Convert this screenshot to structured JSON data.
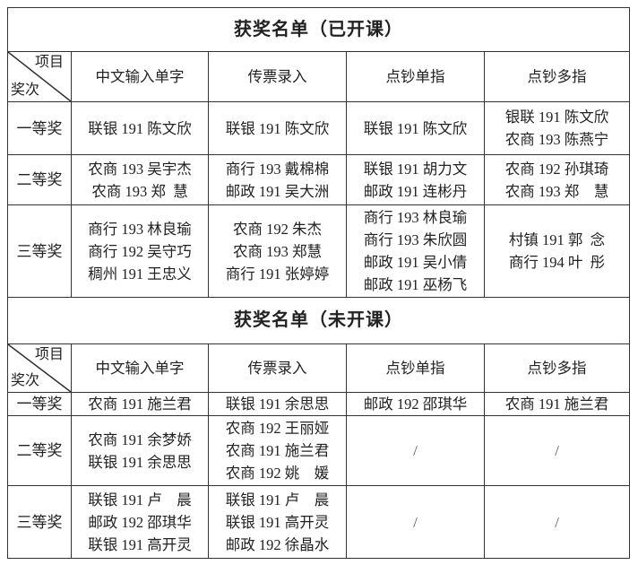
{
  "tables": [
    {
      "title": "获奖名单（已开课）",
      "corner_top": "项目",
      "corner_bottom": "奖次",
      "columns": [
        "中文输入单字",
        "传票录入",
        "点钞单指",
        "点钞多指"
      ],
      "rows": [
        {
          "label": "一等奖",
          "cells": [
            [
              "联银 191 陈文欣"
            ],
            [
              "联银 191 陈文欣"
            ],
            [
              "联银 191 陈文欣"
            ],
            [
              "银联 191 陈文欣",
              "农商 193 陈燕宁"
            ]
          ]
        },
        {
          "label": "二等奖",
          "cells": [
            [
              "农商 193 吴宇杰",
              "农商 193 郑  慧"
            ],
            [
              "商行 193 戴棉棉",
              "邮政 191 吴大洲"
            ],
            [
              "联银 191 胡力文",
              "邮政 191 连彬丹"
            ],
            [
              "农商 192 孙琪琦",
              "农商 193 郑    慧"
            ]
          ]
        },
        {
          "label": "三等奖",
          "cells": [
            [
              "商行 193 林良瑜",
              "商行 192 吴守巧",
              "稠州 191 王忠义"
            ],
            [
              "农商 192 朱杰",
              "农商 193 郑慧",
              "商行 191 张婷婷"
            ],
            [
              "商行 193 林良瑜",
              "商行 193 朱欣圆",
              "邮政 191 吴小倩",
              "邮政 191 巫杨飞"
            ],
            [
              "村镇 191 郭  念",
              "商行 194 叶  彤"
            ]
          ]
        }
      ]
    },
    {
      "title": "获奖名单（未开课）",
      "corner_top": "项目",
      "corner_bottom": "奖次",
      "columns": [
        "中文输入单字",
        "传票录入",
        "点钞单指",
        "点钞多指"
      ],
      "rows": [
        {
          "label": "一等奖",
          "cells": [
            [
              "农商 191 施兰君"
            ],
            [
              "联银 191 余思思"
            ],
            [
              "邮政 192 邵琪华"
            ],
            [
              "农商 191 施兰君"
            ]
          ]
        },
        {
          "label": "二等奖",
          "cells": [
            [
              "农商 191 余梦娇",
              "联银 191 余思思"
            ],
            [
              "农商 192 王丽娅",
              "农商 191 施兰君",
              "农商 192 姚    媛"
            ],
            [
              "/"
            ],
            [
              "/"
            ]
          ]
        },
        {
          "label": "三等奖",
          "cells": [
            [
              "联银 191 卢    晨",
              "邮政 192 邵琪华",
              "联银 191 高开灵"
            ],
            [
              "联银 191 卢    晨",
              "联银 191 高开灵",
              "邮政 192 徐晶水"
            ],
            [
              "/"
            ],
            [
              "/"
            ]
          ]
        }
      ]
    }
  ]
}
